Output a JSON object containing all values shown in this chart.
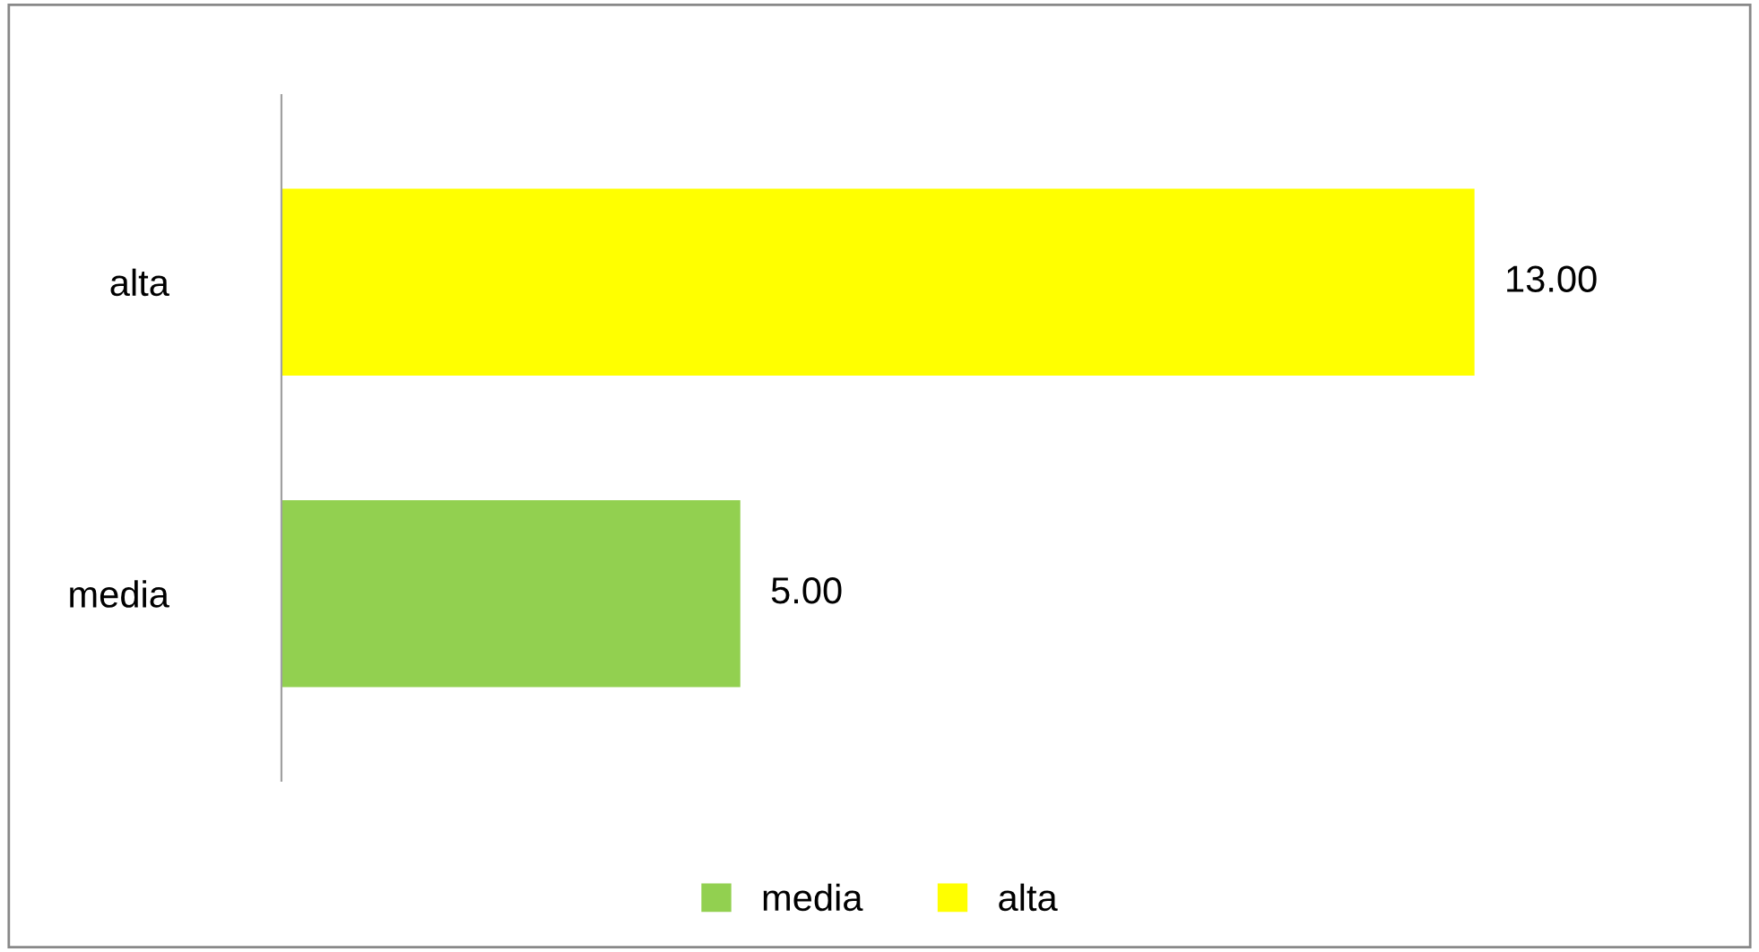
{
  "chart_data": {
    "type": "bar",
    "orientation": "horizontal",
    "categories": [
      "alta",
      "media"
    ],
    "series": [
      {
        "name": "media",
        "color": "#92d050",
        "values": [
          null,
          5
        ],
        "value_labels": [
          null,
          "5.00"
        ]
      },
      {
        "name": "alta",
        "color": "#ffff00",
        "values": [
          13,
          null
        ],
        "value_labels": [
          "13.00",
          null
        ]
      }
    ],
    "legend": "bottom",
    "grid": false,
    "tick_labels": "y"
  }
}
